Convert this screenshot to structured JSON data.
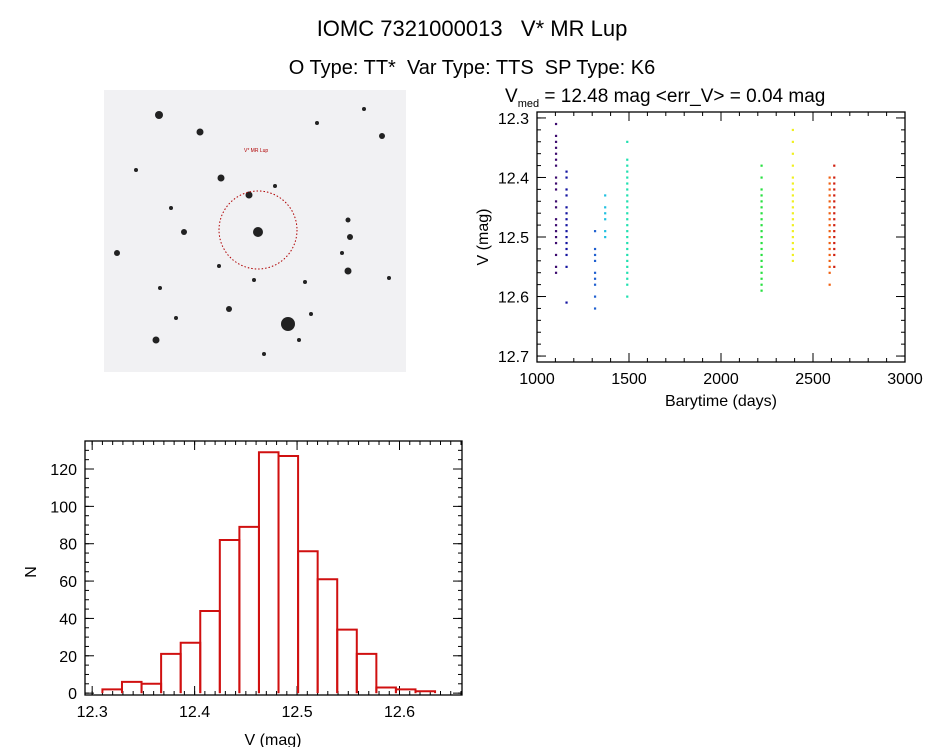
{
  "header": {
    "title": "IOMC 7321000013   V* MR Lup",
    "subtitle": "O Type: TT*  Var Type: TTS  SP Type: K6"
  },
  "image_panel": {
    "target_label": "V* MR Lup",
    "marker_color": "#c00000"
  },
  "chart_data": [
    {
      "type": "scatter",
      "title_main": "V",
      "title_sub": "med",
      "title_rest": " = 12.48 mag <err_V> = 0.04 mag",
      "xlabel": "Barytime (days)",
      "ylabel": "V (mag)",
      "xlim": [
        1000,
        3000
      ],
      "ylim": [
        12.71,
        12.29
      ],
      "xticks": [
        1000,
        1500,
        2000,
        2500,
        3000
      ],
      "yticks": [
        12.3,
        12.4,
        12.5,
        12.6,
        12.7
      ],
      "grid": false,
      "groups": [
        {
          "t": 1103,
          "color": "#3c0a6e",
          "mags": [
            12.31,
            12.33,
            12.34,
            12.35,
            12.36,
            12.37,
            12.38,
            12.4,
            12.41,
            12.42,
            12.44,
            12.45,
            12.47,
            12.48,
            12.49,
            12.5,
            12.51,
            12.53,
            12.55,
            12.56
          ]
        },
        {
          "t": 1160,
          "color": "#1414a0",
          "mags": [
            12.39,
            12.4,
            12.42,
            12.43,
            12.45,
            12.46,
            12.47,
            12.48,
            12.49,
            12.5,
            12.51,
            12.52,
            12.53,
            12.55,
            12.61
          ]
        },
        {
          "t": 1315,
          "color": "#2060d0",
          "mags": [
            12.49,
            12.52,
            12.53,
            12.54,
            12.56,
            12.57,
            12.58,
            12.6,
            12.62
          ]
        },
        {
          "t": 1370,
          "color": "#20c0e0",
          "mags": [
            12.43,
            12.45,
            12.46,
            12.47,
            12.49,
            12.5
          ]
        },
        {
          "t": 1490,
          "color": "#20e0b0",
          "mags": [
            12.34,
            12.37,
            12.38,
            12.39,
            12.4,
            12.41,
            12.42,
            12.43,
            12.44,
            12.45,
            12.46,
            12.47,
            12.48,
            12.49,
            12.5,
            12.51,
            12.52,
            12.53,
            12.54,
            12.55,
            12.56,
            12.57,
            12.58,
            12.6
          ]
        },
        {
          "t": 2220,
          "color": "#28e040",
          "mags": [
            12.38,
            12.4,
            12.42,
            12.43,
            12.44,
            12.45,
            12.46,
            12.47,
            12.48,
            12.49,
            12.5,
            12.51,
            12.52,
            12.53,
            12.54,
            12.55,
            12.56,
            12.57,
            12.58,
            12.59
          ]
        },
        {
          "t": 2390,
          "color": "#f0f020",
          "mags": [
            12.32,
            12.34,
            12.36,
            12.38,
            12.4,
            12.41,
            12.42,
            12.43,
            12.44,
            12.45,
            12.46,
            12.47,
            12.48,
            12.49,
            12.5,
            12.51,
            12.52,
            12.53,
            12.54
          ]
        },
        {
          "t": 2590,
          "color": "#f06010",
          "mags": [
            12.4,
            12.41,
            12.42,
            12.43,
            12.44,
            12.45,
            12.46,
            12.47,
            12.48,
            12.49,
            12.5,
            12.51,
            12.52,
            12.53,
            12.54,
            12.55,
            12.56,
            12.58
          ]
        },
        {
          "t": 2615,
          "color": "#d02010",
          "mags": [
            12.38,
            12.4,
            12.41,
            12.42,
            12.43,
            12.44,
            12.45,
            12.46,
            12.47,
            12.48,
            12.49,
            12.5,
            12.51,
            12.52,
            12.53,
            12.55
          ]
        }
      ]
    },
    {
      "type": "bar",
      "title": "",
      "xlabel": "V (mag)",
      "ylabel": "N",
      "xlim": [
        12.293,
        12.661
      ],
      "ylim": [
        -1,
        135
      ],
      "xticks": [
        12.3,
        12.4,
        12.5,
        12.6
      ],
      "yticks": [
        0,
        20,
        40,
        60,
        80,
        100,
        120
      ],
      "bin_start": 12.31,
      "bin_width": 0.0191,
      "values": [
        2,
        6,
        5,
        21,
        27,
        44,
        82,
        89,
        129,
        127,
        76,
        61,
        34,
        21,
        3,
        2,
        1
      ],
      "bar_color": "#d01010",
      "grid": false
    }
  ]
}
